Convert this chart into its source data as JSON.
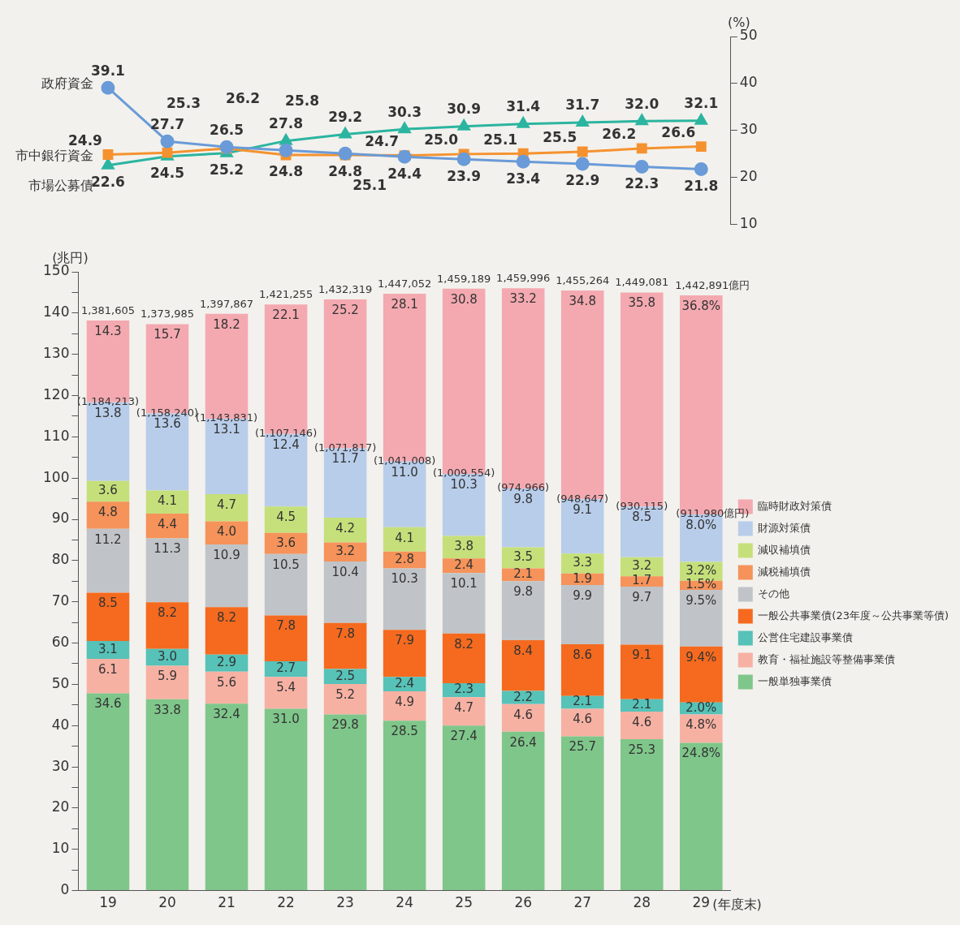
{
  "chart_data": [
    {
      "type": "line",
      "categories": [
        "19",
        "20",
        "21",
        "22",
        "23",
        "24",
        "25",
        "26",
        "27",
        "28",
        "29"
      ],
      "tick_labels": "y",
      "ylabel": "(%)",
      "ylim": [
        10,
        50
      ],
      "yticks": [
        10,
        20,
        30,
        40,
        50
      ],
      "data_labels": true,
      "series": [
        {
          "name": "政府資金",
          "color": "#6a9bd8",
          "marker": "circle",
          "values": [
            39.1,
            27.7,
            26.5,
            25.8,
            25.1,
            24.4,
            23.9,
            23.4,
            22.9,
            22.3,
            21.8
          ],
          "value_labels": [
            "39.1",
            "27.7",
            "26.5",
            "25.8",
            "25.1",
            "24.4",
            "23.9",
            "23.4",
            "22.9",
            "22.3",
            "21.8"
          ]
        },
        {
          "name": "市中銀行資金",
          "color": "#f5922f",
          "marker": "square",
          "values": [
            24.9,
            25.3,
            26.2,
            24.8,
            24.8,
            24.7,
            25.0,
            25.1,
            25.5,
            26.2,
            26.6
          ],
          "value_labels": [
            "24.9",
            "25.3",
            "26.2",
            "24.8",
            "24.8",
            "24.7",
            "25.0",
            "25.1",
            "25.5",
            "26.2",
            "26.6"
          ]
        },
        {
          "name": "市場公募債",
          "color": "#2bb5a0",
          "marker": "triangle",
          "values": [
            22.6,
            24.5,
            25.2,
            27.8,
            29.2,
            30.3,
            30.9,
            31.4,
            31.7,
            32.0,
            32.1
          ],
          "value_labels": [
            "22.6",
            "24.5",
            "25.2",
            "27.8",
            "29.2",
            "30.3",
            "30.9",
            "31.4",
            "31.7",
            "32.0",
            "32.1"
          ]
        }
      ]
    },
    {
      "type": "bar",
      "stacked": true,
      "categories": [
        "19",
        "20",
        "21",
        "22",
        "23",
        "24",
        "25",
        "26",
        "27",
        "28",
        "29"
      ],
      "xlabel": "(年度末)",
      "ylabel": "(兆円)",
      "ylim": [
        0,
        150
      ],
      "yticks": [
        0,
        {
          "value": 5,
          "label": null
        },
        10,
        {
          "value": 15,
          "label": null
        },
        20,
        {
          "value": 25,
          "label": null
        },
        30,
        {
          "value": 35,
          "label": null
        },
        40,
        {
          "value": 45,
          "label": null
        },
        50,
        {
          "value": 55,
          "label": null
        },
        60,
        {
          "value": 65,
          "label": null
        },
        70,
        {
          "value": 75,
          "label": null
        },
        80,
        {
          "value": 85,
          "label": null
        },
        90,
        {
          "value": 95,
          "label": null
        },
        100,
        {
          "value": 105,
          "label": null
        },
        110,
        {
          "value": 115,
          "label": null
        },
        120,
        {
          "value": 125,
          "label": null
        },
        130,
        {
          "value": 135,
          "label": null
        },
        140,
        {
          "value": 145,
          "label": null
        },
        150
      ],
      "legend": "right",
      "annotations": [
        {
          "text": "1,381,605",
          "x": "19",
          "y": 138.2
        },
        {
          "text": "1,373,985",
          "x": "20",
          "y": 137.3
        },
        {
          "text": "1,397,867",
          "x": "21",
          "y": 139.8
        },
        {
          "text": "1,421,255",
          "x": "22",
          "y": 142.1
        },
        {
          "text": "1,432,319",
          "x": "23",
          "y": 143.3
        },
        {
          "text": "1,447,052",
          "x": "24",
          "y": 144.7
        },
        {
          "text": "1,459,189",
          "x": "25",
          "y": 145.9
        },
        {
          "text": "1,459,996",
          "x": "26",
          "y": 146.0
        },
        {
          "text": "1,455,264",
          "x": "27",
          "y": 145.5
        },
        {
          "text": "1,449,081",
          "x": "28",
          "y": 145.0
        },
        {
          "text": "1,442,891億円",
          "x": "29",
          "y": 144.3
        },
        {
          "text": "(1,184,213)",
          "x": "19",
          "y": 118.4
        },
        {
          "text": "(1,158,240)",
          "x": "20",
          "y": 115.7
        },
        {
          "text": "(1,143,831)",
          "x": "21",
          "y": 114.4
        },
        {
          "text": "(1,107,146)",
          "x": "22",
          "y": 110.7
        },
        {
          "text": "(1,071,817)",
          "x": "23",
          "y": 107.2
        },
        {
          "text": "(1,041,008)",
          "x": "24",
          "y": 104.0
        },
        {
          "text": "(1,009,554)",
          "x": "25",
          "y": 101.0
        },
        {
          "text": "(974,966)",
          "x": "26",
          "y": 97.5
        },
        {
          "text": "(948,647)",
          "x": "27",
          "y": 94.9
        },
        {
          "text": "(930,115)",
          "x": "28",
          "y": 93.1
        },
        {
          "text": "(911,980億円)",
          "x": "29",
          "y": 91.2
        },
        {
          "text": "34.6",
          "x": "19",
          "y": 47.8
        },
        {
          "text": "6.1",
          "x": "19",
          "y": 56.2
        },
        {
          "text": "3.1",
          "x": "19",
          "y": 60.5
        },
        {
          "text": "8.5",
          "x": "19",
          "y": 72.2
        },
        {
          "text": "11.2",
          "x": "19",
          "y": 87.7
        },
        {
          "text": "4.8",
          "x": "19",
          "y": 94.3
        },
        {
          "text": "3.6",
          "x": "19",
          "y": 99.3
        },
        {
          "text": "13.8",
          "x": "19",
          "y": 118.4
        },
        {
          "text": "14.3",
          "x": "19",
          "y": 138.2
        },
        {
          "text": "33.8",
          "x": "20",
          "y": 46.4
        },
        {
          "text": "5.9",
          "x": "20",
          "y": 54.5
        },
        {
          "text": "3.0",
          "x": "20",
          "y": 58.6
        },
        {
          "text": "8.2",
          "x": "20",
          "y": 69.9
        },
        {
          "text": "11.3",
          "x": "20",
          "y": 85.4
        },
        {
          "text": "4.4",
          "x": "20",
          "y": 91.4
        },
        {
          "text": "4.1",
          "x": "20",
          "y": 97.0
        },
        {
          "text": "13.6",
          "x": "20",
          "y": 115.7
        },
        {
          "text": "15.7",
          "x": "20",
          "y": 137.3
        },
        {
          "text": "32.4",
          "x": "21",
          "y": 45.3
        },
        {
          "text": "5.6",
          "x": "21",
          "y": 53.1
        },
        {
          "text": "2.9",
          "x": "21",
          "y": 57.2
        },
        {
          "text": "8.2",
          "x": "21",
          "y": 68.7
        },
        {
          "text": "10.9",
          "x": "21",
          "y": 83.9
        },
        {
          "text": "4.0",
          "x": "21",
          "y": 89.5
        },
        {
          "text": "4.7",
          "x": "21",
          "y": 96.1
        },
        {
          "text": "13.1",
          "x": "21",
          "y": 114.4
        },
        {
          "text": "18.2",
          "x": "21",
          "y": 139.8
        },
        {
          "text": "31.0",
          "x": "22",
          "y": 44.1
        },
        {
          "text": "5.4",
          "x": "22",
          "y": 51.8
        },
        {
          "text": "2.7",
          "x": "22",
          "y": 55.6
        },
        {
          "text": "7.8",
          "x": "22",
          "y": 66.7
        },
        {
          "text": "10.5",
          "x": "22",
          "y": 81.6
        },
        {
          "text": "3.6",
          "x": "22",
          "y": 86.7
        },
        {
          "text": "4.5",
          "x": "22",
          "y": 93.1
        },
        {
          "text": "12.4",
          "x": "22",
          "y": 110.7
        },
        {
          "text": "22.1",
          "x": "22",
          "y": 142.1
        },
        {
          "text": "29.8",
          "x": "23",
          "y": 42.7
        },
        {
          "text": "5.2",
          "x": "23",
          "y": 50.1
        },
        {
          "text": "2.5",
          "x": "23",
          "y": 53.7
        },
        {
          "text": "7.8",
          "x": "23",
          "y": 64.9
        },
        {
          "text": "10.4",
          "x": "23",
          "y": 79.8
        },
        {
          "text": "3.2",
          "x": "23",
          "y": 84.4
        },
        {
          "text": "4.2",
          "x": "23",
          "y": 90.4
        },
        {
          "text": "11.7",
          "x": "23",
          "y": 107.2
        },
        {
          "text": "25.2",
          "x": "23",
          "y": 143.3
        },
        {
          "text": "28.5",
          "x": "24",
          "y": 41.2
        },
        {
          "text": "4.9",
          "x": "24",
          "y": 48.3
        },
        {
          "text": "2.4",
          "x": "24",
          "y": 51.8
        },
        {
          "text": "7.9",
          "x": "24",
          "y": 63.2
        },
        {
          "text": "10.3",
          "x": "24",
          "y": 78.1
        },
        {
          "text": "2.8",
          "x": "24",
          "y": 82.2
        },
        {
          "text": "4.1",
          "x": "24",
          "y": 88.1
        },
        {
          "text": "11.0",
          "x": "24",
          "y": 104.0
        },
        {
          "text": "28.1",
          "x": "24",
          "y": 144.7
        },
        {
          "text": "27.4",
          "x": "25",
          "y": 40.0
        },
        {
          "text": "4.7",
          "x": "25",
          "y": 46.9
        },
        {
          "text": "2.3",
          "x": "25",
          "y": 50.3
        },
        {
          "text": "8.2",
          "x": "25",
          "y": 62.3
        },
        {
          "text": "10.1",
          "x": "25",
          "y": 77.0
        },
        {
          "text": "2.4",
          "x": "25",
          "y": 80.5
        },
        {
          "text": "3.8",
          "x": "25",
          "y": 86.0
        },
        {
          "text": "10.3",
          "x": "25",
          "y": 101.0
        },
        {
          "text": "30.8",
          "x": "25",
          "y": 145.9
        },
        {
          "text": "26.4",
          "x": "26",
          "y": 38.5
        },
        {
          "text": "4.6",
          "x": "26",
          "y": 45.2
        },
        {
          "text": "2.2",
          "x": "26",
          "y": 48.4
        },
        {
          "text": "8.4",
          "x": "26",
          "y": 60.7
        },
        {
          "text": "9.8",
          "x": "26",
          "y": 75.0
        },
        {
          "text": "2.1",
          "x": "26",
          "y": 78.1
        },
        {
          "text": "3.5",
          "x": "26",
          "y": 83.2
        },
        {
          "text": "9.8",
          "x": "26",
          "y": 97.5
        },
        {
          "text": "33.2",
          "x": "26",
          "y": 146.0
        },
        {
          "text": "25.7",
          "x": "27",
          "y": 37.4
        },
        {
          "text": "4.6",
          "x": "27",
          "y": 44.1
        },
        {
          "text": "2.1",
          "x": "27",
          "y": 47.2
        },
        {
          "text": "8.6",
          "x": "27",
          "y": 59.7
        },
        {
          "text": "9.9",
          "x": "27",
          "y": 74.1
        },
        {
          "text": "1.9",
          "x": "27",
          "y": 76.9
        },
        {
          "text": "3.3",
          "x": "27",
          "y": 81.7
        },
        {
          "text": "9.1",
          "x": "27",
          "y": 94.9
        },
        {
          "text": "34.8",
          "x": "27",
          "y": 145.5
        },
        {
          "text": "25.3",
          "x": "28",
          "y": 36.7
        },
        {
          "text": "4.6",
          "x": "28",
          "y": 43.4
        },
        {
          "text": "2.1",
          "x": "28",
          "y": 46.4
        },
        {
          "text": "9.1",
          "x": "28",
          "y": 59.6
        },
        {
          "text": "9.7",
          "x": "28",
          "y": 73.7
        },
        {
          "text": "1.7",
          "x": "28",
          "y": 76.2
        },
        {
          "text": "3.2",
          "x": "28",
          "y": 80.8
        },
        {
          "text": "8.5",
          "x": "28",
          "y": 93.1
        },
        {
          "text": "35.8",
          "x": "28",
          "y": 145.0
        },
        {
          "text": "24.8%",
          "x": "29",
          "y": 35.8
        },
        {
          "text": "4.8%",
          "x": "29",
          "y": 42.7
        },
        {
          "text": "2.0%",
          "x": "29",
          "y": 45.6
        },
        {
          "text": "9.4%",
          "x": "29",
          "y": 59.2
        },
        {
          "text": "9.5%",
          "x": "29",
          "y": 72.9
        },
        {
          "text": "1.5%",
          "x": "29",
          "y": 75.1
        },
        {
          "text": "3.2%",
          "x": "29",
          "y": 79.7
        },
        {
          "text": "8.0%",
          "x": "29",
          "y": 91.2
        },
        {
          "text": "36.8%",
          "x": "29",
          "y": 144.3
        }
      ],
      "series": [
        {
          "name": "一般単独事業債",
          "color": "#7fc68a",
          "values": [
            47.8,
            46.4,
            45.3,
            44.1,
            42.7,
            41.2,
            40.0,
            38.5,
            37.4,
            36.7,
            35.8
          ]
        },
        {
          "name": "教育・福祉施設等整備事業債",
          "color": "#f7b1a3",
          "values": [
            8.4,
            8.1,
            7.8,
            7.7,
            7.4,
            7.1,
            6.9,
            6.7,
            6.7,
            6.7,
            6.9
          ]
        },
        {
          "name": "公営住宅建設事業債",
          "color": "#56c2b8",
          "values": [
            4.3,
            4.1,
            4.1,
            3.8,
            3.6,
            3.5,
            3.4,
            3.2,
            3.1,
            3.0,
            2.9
          ]
        },
        {
          "name": "一般公共事業債(23年度～公共事業等債)",
          "color": "#f56a1f",
          "values": [
            11.7,
            11.3,
            11.5,
            11.1,
            11.2,
            11.4,
            12.0,
            12.3,
            12.5,
            13.2,
            13.6
          ]
        },
        {
          "name": "その他",
          "color": "#c0c4c8",
          "values": [
            15.5,
            15.5,
            15.2,
            14.9,
            14.9,
            14.9,
            14.7,
            14.3,
            14.4,
            14.1,
            13.7
          ]
        },
        {
          "name": "減税補填債",
          "color": "#f5935a",
          "values": [
            6.6,
            6.0,
            5.6,
            5.1,
            4.6,
            4.1,
            3.5,
            3.1,
            2.8,
            2.5,
            2.2
          ]
        },
        {
          "name": "減収補填債",
          "color": "#c5e07a",
          "values": [
            5.0,
            5.6,
            6.6,
            6.4,
            6.0,
            5.9,
            5.5,
            5.1,
            4.8,
            4.6,
            4.6
          ]
        },
        {
          "name": "財源対策債",
          "color": "#b8cdea",
          "values": [
            19.1,
            18.7,
            18.3,
            17.6,
            16.8,
            15.9,
            15.0,
            14.3,
            13.2,
            12.3,
            11.5
          ]
        },
        {
          "name": "臨時財政対策債",
          "color": "#f4a9b0",
          "values": [
            19.8,
            21.6,
            25.4,
            31.4,
            36.1,
            40.7,
            44.9,
            48.5,
            50.6,
            51.9,
            53.1
          ]
        }
      ]
    }
  ]
}
